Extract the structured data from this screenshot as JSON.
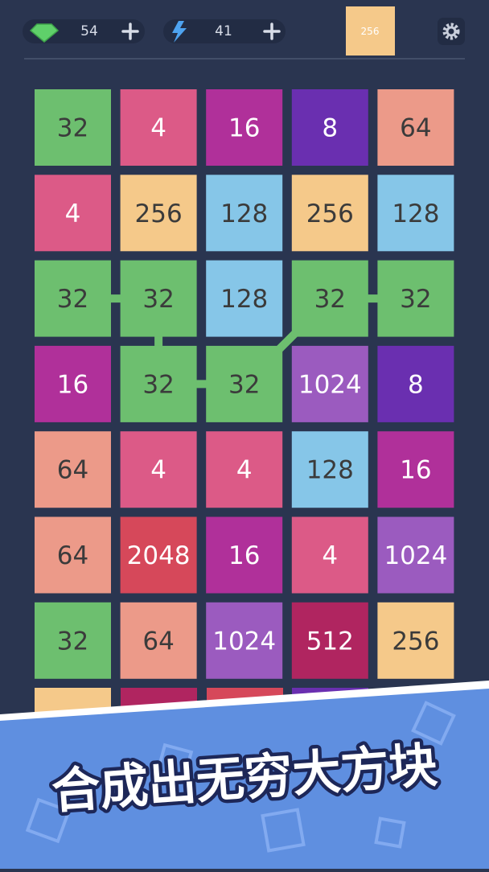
{
  "header": {
    "gems": "54",
    "energy": "41",
    "target_tile": "256"
  },
  "board": {
    "rows": [
      [
        {
          "value": "32",
          "color": "#6dbf6f"
        },
        {
          "value": "4",
          "color": "#dc5a87"
        },
        {
          "value": "16",
          "color": "#b0309a"
        },
        {
          "value": "8",
          "color": "#6a2fb0"
        },
        {
          "value": "64",
          "color": "#ec9a89"
        }
      ],
      [
        {
          "value": "4",
          "color": "#dc5a87"
        },
        {
          "value": "256",
          "color": "#f5c98a"
        },
        {
          "value": "128",
          "color": "#86c6e8"
        },
        {
          "value": "256",
          "color": "#f5c98a"
        },
        {
          "value": "128",
          "color": "#86c6e8"
        }
      ],
      [
        {
          "value": "32",
          "color": "#6dbf6f"
        },
        {
          "value": "32",
          "color": "#6dbf6f"
        },
        {
          "value": "128",
          "color": "#86c6e8"
        },
        {
          "value": "32",
          "color": "#6dbf6f"
        },
        {
          "value": "32",
          "color": "#6dbf6f"
        }
      ],
      [
        {
          "value": "16",
          "color": "#b0309a"
        },
        {
          "value": "32",
          "color": "#6dbf6f"
        },
        {
          "value": "32",
          "color": "#6dbf6f"
        },
        {
          "value": "1024",
          "color": "#9b5bbf"
        },
        {
          "value": "8",
          "color": "#6a2fb0"
        }
      ],
      [
        {
          "value": "64",
          "color": "#ec9a89"
        },
        {
          "value": "4",
          "color": "#dc5a87"
        },
        {
          "value": "4",
          "color": "#dc5a87"
        },
        {
          "value": "128",
          "color": "#86c6e8"
        },
        {
          "value": "16",
          "color": "#b0309a"
        }
      ],
      [
        {
          "value": "64",
          "color": "#ec9a89"
        },
        {
          "value": "2048",
          "color": "#d6485a"
        },
        {
          "value": "16",
          "color": "#b0309a"
        },
        {
          "value": "4",
          "color": "#dc5a87"
        },
        {
          "value": "1024",
          "color": "#9b5bbf"
        }
      ],
      [
        {
          "value": "32",
          "color": "#6dbf6f"
        },
        {
          "value": "64",
          "color": "#ec9a89"
        },
        {
          "value": "1024",
          "color": "#9b5bbf"
        },
        {
          "value": "512",
          "color": "#b02560"
        },
        {
          "value": "256",
          "color": "#f5c98a"
        }
      ]
    ]
  },
  "banner": {
    "title": "合成出无穷大方块"
  }
}
